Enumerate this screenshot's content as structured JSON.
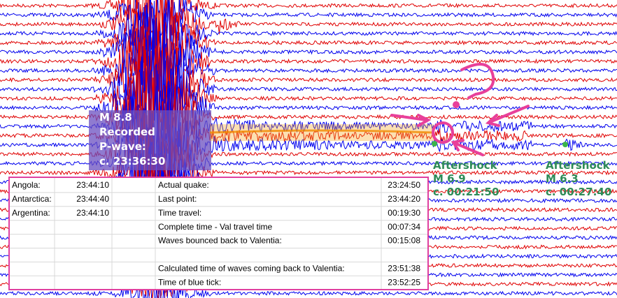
{
  "main_quake": {
    "magnitude": "M 8.8",
    "line1": "Recorded",
    "line2": "P-wave:",
    "time": "c. 23:36:30"
  },
  "aftershocks": [
    {
      "label": "Aftershock",
      "magnitude": "M 6.9",
      "time": "c. 00:21:50"
    },
    {
      "label": "Aftershock",
      "magnitude": "M 6.3",
      "time": "c. 00:27:40"
    }
  ],
  "table": {
    "stations": [
      [
        "Angola:",
        "23:44:10"
      ],
      [
        "Antarctica:",
        "23:44:40"
      ],
      [
        "Argentina:",
        "23:44:10"
      ]
    ],
    "calculations": [
      [
        "Actual quake:",
        "23:24:50"
      ],
      [
        "Last point:",
        "23:44:20"
      ],
      [
        "Time travel:",
        "00:19:30"
      ],
      [
        "Complete time - Val travel time",
        "00:07:34"
      ],
      [
        "Waves bounced back to Valentia:",
        "00:15:08"
      ],
      [
        "Calculated time of waves coming back to Valentia:",
        "23:51:38"
      ],
      [
        "Time of blue tick:",
        "23:52:25"
      ]
    ]
  }
}
